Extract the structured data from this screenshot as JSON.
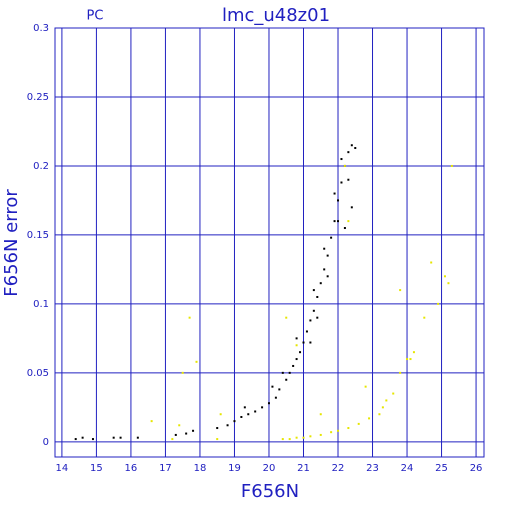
{
  "chart_data": {
    "type": "scatter",
    "title": "lmc_u48z01",
    "subtitle": "PC",
    "x_label": "F656N",
    "y_label": "F656N error",
    "xlim": [
      13.8,
      26.23
    ],
    "ylim": [
      -0.011,
      0.3
    ],
    "xticks": [
      14,
      15,
      16,
      17,
      18,
      19,
      20,
      21,
      22,
      23,
      24,
      25,
      26
    ],
    "yticks": [
      0,
      0.05,
      0.1,
      0.15,
      0.2,
      0.25,
      0.3
    ],
    "grid": true,
    "series": [
      {
        "color": "#000000",
        "x": [
          14.4,
          14.6,
          14.9,
          15.5,
          15.7,
          16.2,
          17.3,
          17.6,
          17.8,
          18.5,
          18.8,
          19.0,
          19.2,
          19.4,
          19.6,
          19.8,
          20.0,
          20.2,
          20.3,
          20.5,
          20.6,
          20.7,
          20.8,
          20.9,
          21.0,
          21.1,
          21.2,
          21.3,
          21.4,
          21.5,
          21.6,
          21.7,
          21.8,
          21.9,
          22.0,
          22.1,
          22.2,
          22.3,
          22.4,
          22.5,
          19.3,
          20.1,
          20.8,
          21.3,
          21.6,
          21.9,
          22.1,
          21.7,
          21.4,
          22.3,
          22.4,
          22.0,
          21.2,
          20.4,
          22.2
        ],
        "values": [
          0.002,
          0.003,
          0.002,
          0.003,
          0.003,
          0.003,
          0.005,
          0.006,
          0.008,
          0.01,
          0.012,
          0.015,
          0.018,
          0.02,
          0.022,
          0.025,
          0.028,
          0.032,
          0.038,
          0.045,
          0.05,
          0.055,
          0.06,
          0.065,
          0.072,
          0.08,
          0.088,
          0.095,
          0.105,
          0.115,
          0.125,
          0.135,
          0.148,
          0.16,
          0.175,
          0.188,
          0.2,
          0.21,
          0.215,
          0.213,
          0.025,
          0.04,
          0.075,
          0.11,
          0.14,
          0.18,
          0.205,
          0.12,
          0.09,
          0.19,
          0.17,
          0.16,
          0.072,
          0.05,
          0.155
        ]
      },
      {
        "color": "#e6e600",
        "x": [
          16.6,
          17.2,
          17.4,
          17.5,
          17.7,
          18.5,
          18.6,
          20.4,
          20.6,
          20.8,
          21.0,
          21.2,
          21.5,
          21.8,
          22.0,
          22.3,
          22.6,
          22.9,
          23.2,
          23.4,
          23.6,
          23.8,
          24.0,
          24.2,
          24.5,
          24.7,
          24.9,
          25.1,
          25.3,
          20.5,
          20.8,
          21.5,
          22.8,
          23.3,
          24.1,
          23.8,
          25.2,
          22.3,
          22.2,
          17.9
        ],
        "values": [
          0.015,
          0.002,
          0.012,
          0.05,
          0.09,
          0.002,
          0.02,
          0.002,
          0.002,
          0.003,
          0.003,
          0.004,
          0.005,
          0.007,
          0.008,
          0.01,
          0.013,
          0.017,
          0.02,
          0.03,
          0.035,
          0.05,
          0.06,
          0.065,
          0.09,
          0.13,
          0.1,
          0.12,
          0.2,
          0.09,
          0.07,
          0.02,
          0.04,
          0.025,
          0.06,
          0.11,
          0.115,
          0.16,
          0.2,
          0.058
        ]
      }
    ]
  }
}
